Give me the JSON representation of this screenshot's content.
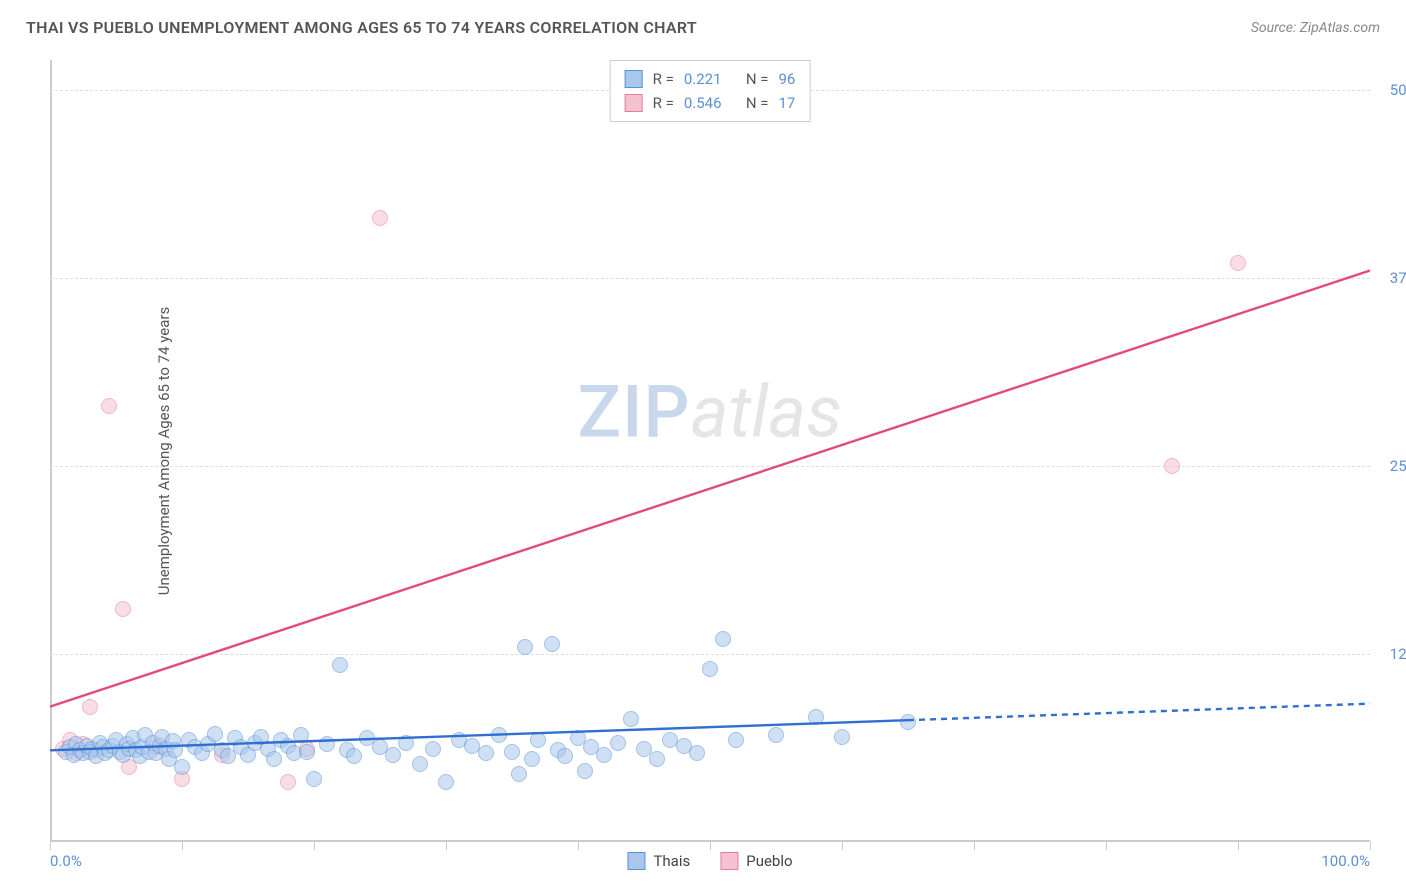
{
  "header": {
    "title": "THAI VS PUEBLO UNEMPLOYMENT AMONG AGES 65 TO 74 YEARS CORRELATION CHART",
    "source_prefix": "Source: ",
    "source_name": "ZipAtlas.com"
  },
  "watermark": {
    "zip": "ZIP",
    "atlas": "atlas"
  },
  "chart": {
    "type": "scatter",
    "y_axis_label": "Unemployment Among Ages 65 to 74 years",
    "xlim": [
      0,
      100
    ],
    "ylim": [
      0,
      52
    ],
    "x_ticks": [
      0,
      10,
      20,
      30,
      40,
      50,
      60,
      70,
      80,
      90,
      100
    ],
    "x_tick_labels": {
      "0": "0.0%",
      "100": "100.0%"
    },
    "y_gridlines": [
      12.5,
      25.0,
      37.5,
      50.0
    ],
    "y_tick_labels": [
      "12.5%",
      "25.0%",
      "37.5%",
      "50.0%"
    ],
    "background_color": "#ffffff",
    "grid_color": "#dddddd",
    "axis_color": "#cccccc",
    "tick_label_color": "#5b8fd6",
    "point_radius": 8,
    "point_opacity": 0.55,
    "series": {
      "thais": {
        "label": "Thais",
        "fill": "#a9c7ec",
        "stroke": "#5b8fd6",
        "r_value": "0.221",
        "n_value": "96",
        "trend": {
          "x1": 0,
          "y1": 6.1,
          "x2": 65,
          "y2": 8.1,
          "x3": 100,
          "y3": 9.2,
          "color": "#2f6fd0",
          "width": 2.4
        },
        "points": [
          [
            1.2,
            6.0
          ],
          [
            1.5,
            6.3
          ],
          [
            1.8,
            5.8
          ],
          [
            2.0,
            6.5
          ],
          [
            2.3,
            6.1
          ],
          [
            2.5,
            5.9
          ],
          [
            2.8,
            6.4
          ],
          [
            3.0,
            6.0
          ],
          [
            3.2,
            6.2
          ],
          [
            3.5,
            5.7
          ],
          [
            3.8,
            6.6
          ],
          [
            4.0,
            6.3
          ],
          [
            4.2,
            5.9
          ],
          [
            4.5,
            6.1
          ],
          [
            4.8,
            6.4
          ],
          [
            5.0,
            6.8
          ],
          [
            5.3,
            6.0
          ],
          [
            5.5,
            5.8
          ],
          [
            5.8,
            6.5
          ],
          [
            6.0,
            6.2
          ],
          [
            6.3,
            6.9
          ],
          [
            6.5,
            6.1
          ],
          [
            6.8,
            5.7
          ],
          [
            7.0,
            6.3
          ],
          [
            7.2,
            7.1
          ],
          [
            7.5,
            6.0
          ],
          [
            7.8,
            6.6
          ],
          [
            8.0,
            5.9
          ],
          [
            8.3,
            6.4
          ],
          [
            8.5,
            7.0
          ],
          [
            8.8,
            6.2
          ],
          [
            9.0,
            5.5
          ],
          [
            9.3,
            6.7
          ],
          [
            9.5,
            6.1
          ],
          [
            10.0,
            5.0
          ],
          [
            10.5,
            6.8
          ],
          [
            11.0,
            6.3
          ],
          [
            11.5,
            5.9
          ],
          [
            12.0,
            6.5
          ],
          [
            12.5,
            7.2
          ],
          [
            13.0,
            6.1
          ],
          [
            13.5,
            5.7
          ],
          [
            14.0,
            6.9
          ],
          [
            14.5,
            6.3
          ],
          [
            15.0,
            5.8
          ],
          [
            15.5,
            6.6
          ],
          [
            16.0,
            7.0
          ],
          [
            16.5,
            6.2
          ],
          [
            17.0,
            5.5
          ],
          [
            17.5,
            6.8
          ],
          [
            18.0,
            6.4
          ],
          [
            18.5,
            5.9
          ],
          [
            19.0,
            7.1
          ],
          [
            19.5,
            6.0
          ],
          [
            20.0,
            4.2
          ],
          [
            21.0,
            6.5
          ],
          [
            22.0,
            11.8
          ],
          [
            22.5,
            6.1
          ],
          [
            23.0,
            5.7
          ],
          [
            24.0,
            6.9
          ],
          [
            25.0,
            6.3
          ],
          [
            26.0,
            5.8
          ],
          [
            27.0,
            6.6
          ],
          [
            28.0,
            5.2
          ],
          [
            29.0,
            6.2
          ],
          [
            30.0,
            4.0
          ],
          [
            31.0,
            6.8
          ],
          [
            32.0,
            6.4
          ],
          [
            33.0,
            5.9
          ],
          [
            34.0,
            7.1
          ],
          [
            35.0,
            6.0
          ],
          [
            35.5,
            4.5
          ],
          [
            36.0,
            13.0
          ],
          [
            36.5,
            5.5
          ],
          [
            37.0,
            6.8
          ],
          [
            38.0,
            13.2
          ],
          [
            38.5,
            6.1
          ],
          [
            39.0,
            5.7
          ],
          [
            40.0,
            6.9
          ],
          [
            40.5,
            4.7
          ],
          [
            41.0,
            6.3
          ],
          [
            42.0,
            5.8
          ],
          [
            43.0,
            6.6
          ],
          [
            44.0,
            8.2
          ],
          [
            45.0,
            6.2
          ],
          [
            46.0,
            5.5
          ],
          [
            47.0,
            6.8
          ],
          [
            48.0,
            6.4
          ],
          [
            49.0,
            5.9
          ],
          [
            50.0,
            11.5
          ],
          [
            51.0,
            13.5
          ],
          [
            52.0,
            6.8
          ],
          [
            55.0,
            7.1
          ],
          [
            58.0,
            8.3
          ],
          [
            60.0,
            7.0
          ],
          [
            65.0,
            8.0
          ]
        ]
      },
      "pueblo": {
        "label": "Pueblo",
        "fill": "#f4c2d0",
        "stroke": "#e87ca0",
        "r_value": "0.546",
        "n_value": "17",
        "trend": {
          "x1": 0,
          "y1": 9.0,
          "x2": 100,
          "y2": 38.0,
          "color": "#e14b7c",
          "width": 2.4
        },
        "points": [
          [
            1.0,
            6.2
          ],
          [
            1.5,
            6.8
          ],
          [
            2.0,
            5.9
          ],
          [
            2.5,
            6.5
          ],
          [
            3.0,
            9.0
          ],
          [
            3.5,
            6.1
          ],
          [
            4.5,
            29.0
          ],
          [
            5.5,
            15.5
          ],
          [
            6.0,
            5.0
          ],
          [
            8.0,
            6.3
          ],
          [
            10.0,
            4.2
          ],
          [
            13.0,
            5.8
          ],
          [
            18.0,
            4.0
          ],
          [
            19.5,
            6.2
          ],
          [
            25.0,
            41.5
          ],
          [
            85.0,
            25.0
          ],
          [
            90.0,
            38.5
          ]
        ]
      }
    },
    "legend_top": {
      "r_label": "R  =",
      "n_label": "N  =",
      "text_color": "#555555",
      "value_color": "#5b8fd6"
    }
  }
}
